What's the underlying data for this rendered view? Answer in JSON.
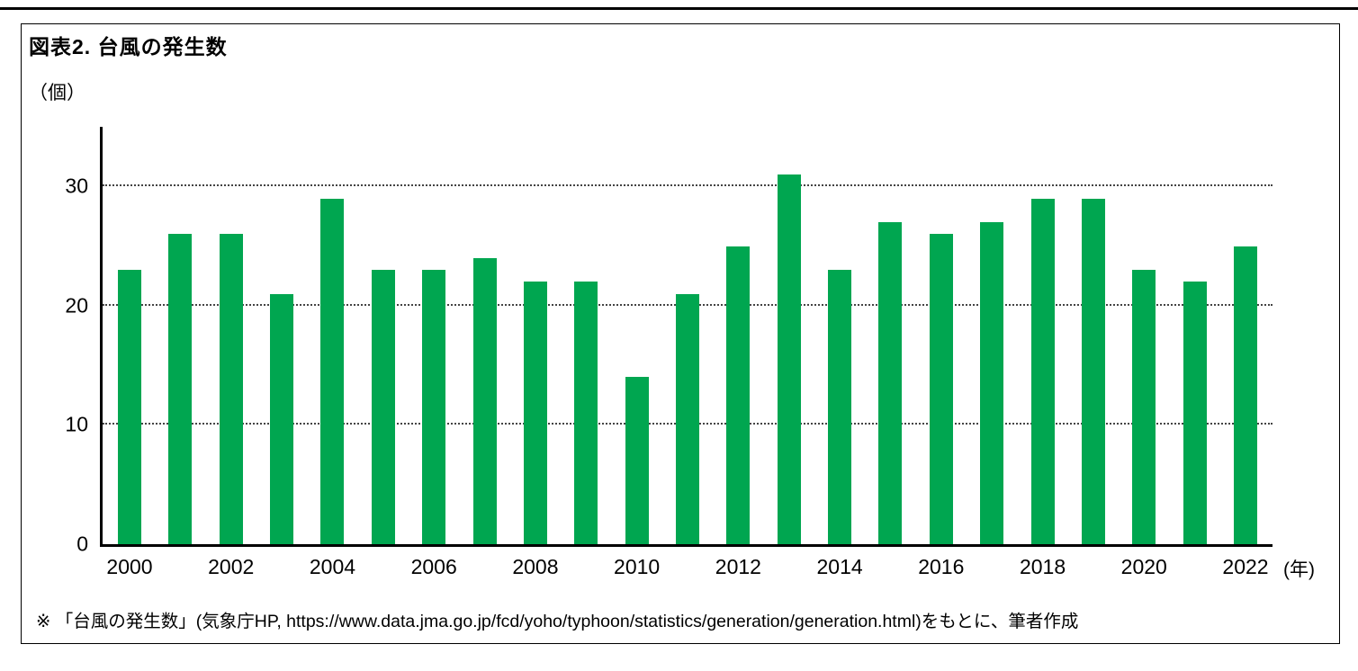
{
  "figure": {
    "title": "図表2. 台風の発生数",
    "y_unit_label": "（個）",
    "x_unit_label": "(年)"
  },
  "chart_data": {
    "type": "bar",
    "title": "台風の発生数",
    "xlabel": "年",
    "ylabel": "個",
    "categories": [
      2000,
      2001,
      2002,
      2003,
      2004,
      2005,
      2006,
      2007,
      2008,
      2009,
      2010,
      2011,
      2012,
      2013,
      2014,
      2015,
      2016,
      2017,
      2018,
      2019,
      2020,
      2021,
      2022
    ],
    "values": [
      23,
      26,
      26,
      21,
      29,
      23,
      23,
      24,
      22,
      22,
      14,
      21,
      25,
      31,
      23,
      27,
      26,
      27,
      29,
      29,
      23,
      22,
      25
    ],
    "yticks": [
      0,
      10,
      20,
      30
    ],
    "ylim": [
      0,
      35
    ],
    "xtick_labels": [
      "2000",
      "2002",
      "2004",
      "2006",
      "2008",
      "2010",
      "2012",
      "2014",
      "2016",
      "2018",
      "2020",
      "2022"
    ],
    "bar_color": "#00A650",
    "grid": "dotted-horizontal",
    "legend": "none"
  },
  "footnote": {
    "text": "※ 「台風の発生数」(気象庁HP, https://www.data.jma.go.jp/fcd/yoho/typhoon/statistics/generation/generation.html)をもとに、筆者作成"
  }
}
